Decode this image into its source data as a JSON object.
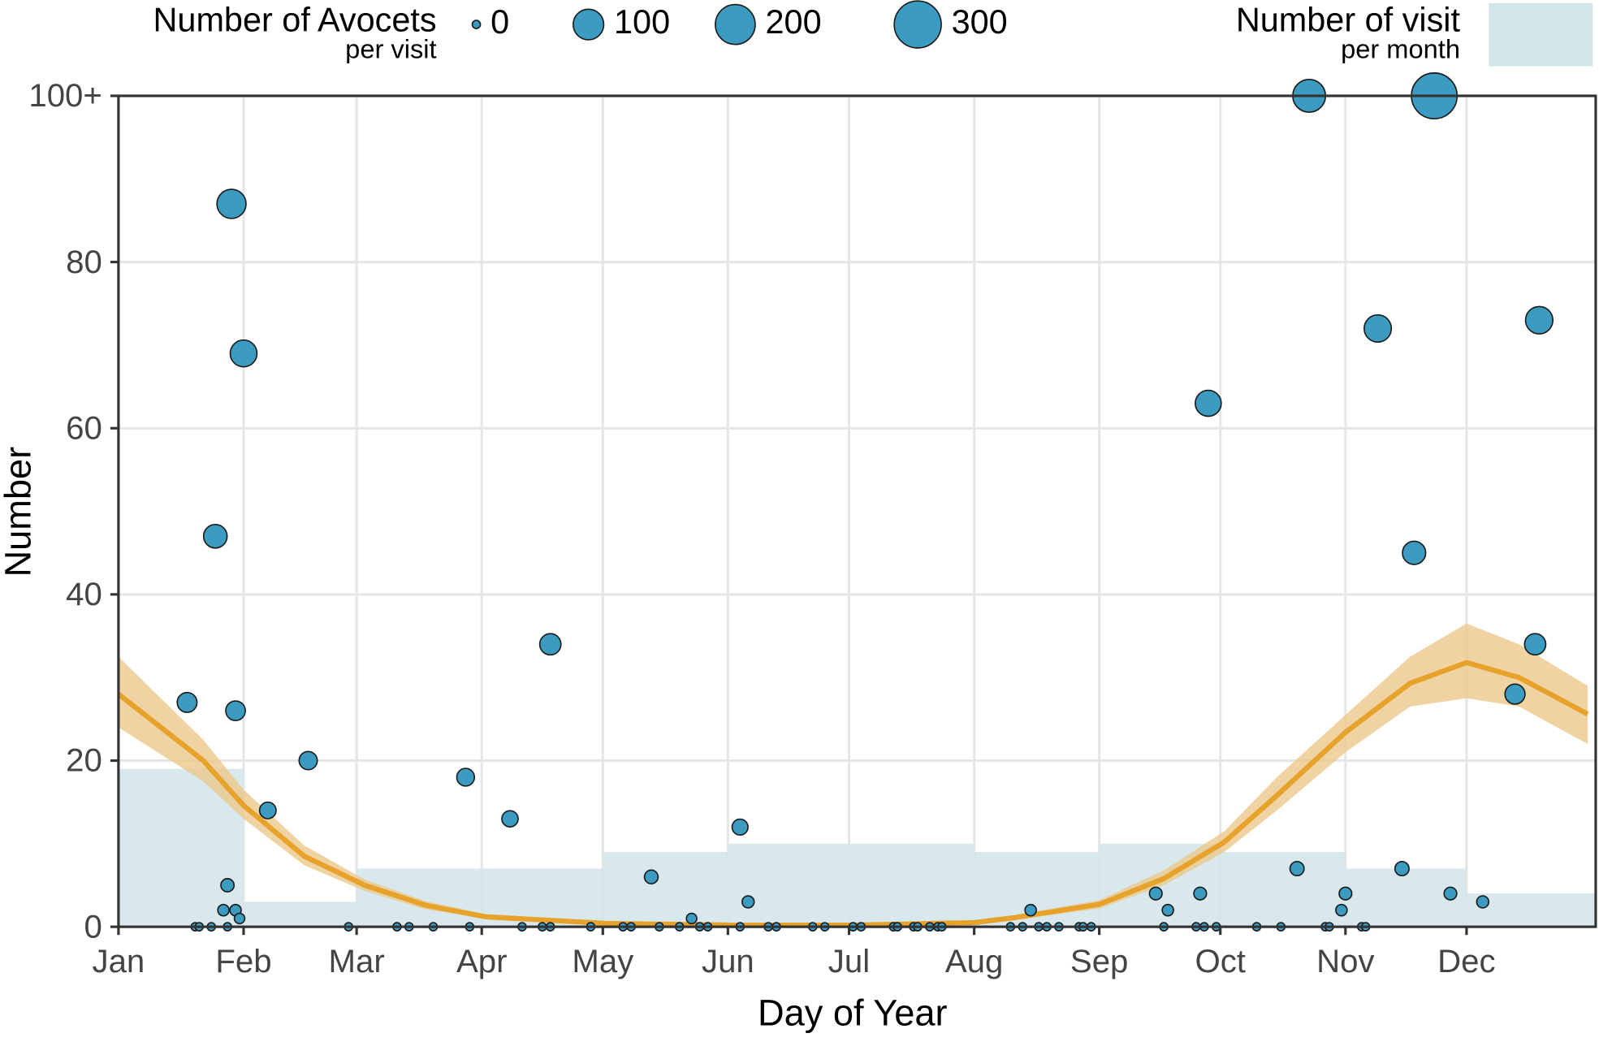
{
  "chart_data": {
    "type": "scatter",
    "x_label": "Day of Year",
    "y_label": "Number",
    "xlim": [
      1,
      367
    ],
    "ylim": [
      0,
      100
    ],
    "xticks": [
      {
        "value": 1,
        "label": "Jan"
      },
      {
        "value": 32,
        "label": "Feb"
      },
      {
        "value": 60,
        "label": "Mar"
      },
      {
        "value": 91,
        "label": "Apr"
      },
      {
        "value": 121,
        "label": "May"
      },
      {
        "value": 152,
        "label": "Jun"
      },
      {
        "value": 182,
        "label": "Jul"
      },
      {
        "value": 213,
        "label": "Aug"
      },
      {
        "value": 244,
        "label": "Sep"
      },
      {
        "value": 274,
        "label": "Oct"
      },
      {
        "value": 305,
        "label": "Nov"
      },
      {
        "value": 335,
        "label": "Dec"
      }
    ],
    "yticks": [
      0,
      20,
      40,
      60,
      80,
      {
        "value": 100,
        "label": "100+"
      }
    ],
    "grid": true,
    "size_legend": {
      "title": "Number of Avocets",
      "subtitle": "per visit",
      "values": [
        0,
        100,
        200,
        300
      ]
    },
    "visit_legend": {
      "title": "Number of visit",
      "subtitle": "per month"
    },
    "points": {
      "color": "#3b9bc1",
      "x": [
        18,
        25,
        29,
        32,
        30,
        28,
        27,
        30,
        31,
        20,
        21,
        24,
        28,
        38,
        48,
        58,
        70,
        73,
        79,
        87,
        88,
        98,
        101,
        106,
        108,
        108,
        118,
        126,
        128,
        133,
        135,
        140,
        143,
        145,
        147,
        155,
        155,
        157,
        162,
        164,
        173,
        176,
        183,
        185,
        193,
        194,
        198,
        199,
        202,
        204,
        205,
        222,
        225,
        229,
        231,
        234,
        239,
        240,
        242,
        227,
        258,
        261,
        260,
        268,
        270,
        273,
        269,
        271,
        283,
        289,
        293,
        296,
        300,
        301,
        304,
        305,
        309,
        310,
        313,
        319,
        322,
        327,
        331,
        339,
        347,
        352,
        353
      ],
      "y": [
        27,
        47,
        87,
        69,
        26,
        5,
        2,
        2,
        1,
        0,
        0,
        0,
        0,
        14,
        20,
        0,
        0,
        0,
        0,
        18,
        0,
        13,
        0,
        0,
        0,
        34,
        0,
        0,
        0,
        6,
        0,
        0,
        1,
        0,
        0,
        12,
        0,
        3,
        0,
        0,
        0,
        0,
        0,
        0,
        0,
        0,
        0,
        0,
        0,
        0,
        0,
        0,
        0,
        0,
        0,
        0,
        0,
        0,
        0,
        2,
        4,
        2,
        0,
        0,
        0,
        0,
        4,
        63,
        0,
        0,
        7,
        100,
        0,
        0,
        2,
        4,
        0,
        0,
        72,
        7,
        45,
        100,
        4,
        3,
        28,
        34,
        73
      ],
      "size": [
        27,
        47,
        87,
        69,
        26,
        5,
        2,
        2,
        1,
        0,
        0,
        0,
        0,
        14,
        20,
        0,
        0,
        0,
        0,
        18,
        0,
        13,
        0,
        0,
        0,
        34,
        0,
        0,
        0,
        6,
        0,
        0,
        1,
        0,
        0,
        12,
        0,
        3,
        0,
        0,
        0,
        0,
        0,
        0,
        0,
        0,
        0,
        0,
        0,
        0,
        0,
        0,
        0,
        0,
        0,
        0,
        0,
        0,
        0,
        2,
        4,
        2,
        0,
        0,
        0,
        0,
        4,
        63,
        0,
        0,
        7,
        120,
        0,
        0,
        2,
        4,
        0,
        0,
        72,
        7,
        45,
        280,
        4,
        3,
        28,
        34,
        73
      ]
    },
    "visits": {
      "color": "#d4e6ea",
      "bins": [
        1,
        32,
        60,
        91,
        121,
        152,
        182,
        213,
        244,
        274,
        305,
        335,
        367
      ],
      "counts": [
        19,
        3,
        7,
        7,
        9,
        10,
        10,
        9,
        10,
        9,
        7,
        4
      ]
    },
    "trend": {
      "color": "#e6a22b",
      "band_color": "#ecc88c",
      "x": [
        1,
        22,
        32,
        47,
        62,
        77,
        92,
        122,
        153,
        183,
        213,
        223,
        244,
        260,
        275,
        288,
        305,
        321,
        335,
        348,
        365
      ],
      "values": [
        28,
        20,
        14.6,
        8.5,
        5,
        2.6,
        1.2,
        0.4,
        0.2,
        0.2,
        0.5,
        1.1,
        2.7,
        5.8,
        10.2,
        15.8,
        23.4,
        29.3,
        31.8,
        30,
        25.6
      ],
      "lower": [
        24,
        17.5,
        13,
        7.4,
        4.3,
        2.1,
        1,
        0.2,
        0,
        0,
        0.3,
        0.8,
        2.2,
        5,
        9,
        14,
        21,
        26.5,
        27.5,
        26.5,
        22
      ],
      "upper": [
        32.5,
        22.5,
        16.5,
        9.8,
        5.7,
        3.1,
        1.5,
        0.6,
        0.4,
        0.4,
        0.7,
        1.4,
        3.2,
        6.8,
        11.5,
        18,
        25.5,
        32.5,
        36.5,
        34,
        29
      ]
    }
  }
}
